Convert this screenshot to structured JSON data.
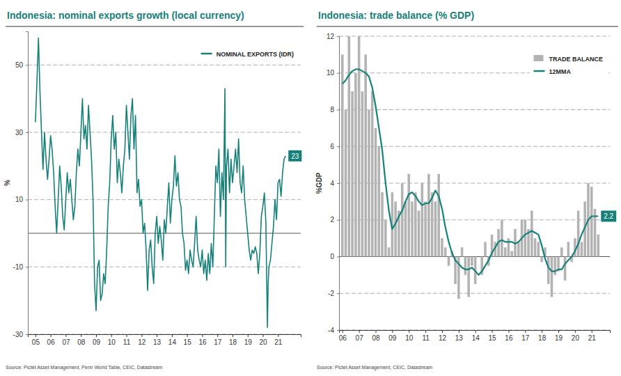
{
  "chart_data": [
    {
      "type": "line",
      "title": "Indonesia: nominal exports growth (local currency)",
      "y_label": "%",
      "source": "Source: Pictet Asset Management, Penn World Table, CEIC, Datastream",
      "x": [
        2005,
        2005.1,
        2005.2,
        2005.3,
        2005.4,
        2005.5,
        2005.6,
        2005.7,
        2005.8,
        2005.9,
        2006,
        2006.1,
        2006.2,
        2006.3,
        2006.4,
        2006.5,
        2006.6,
        2006.7,
        2006.8,
        2006.9,
        2007,
        2007.1,
        2007.2,
        2007.3,
        2007.4,
        2007.5,
        2007.6,
        2007.7,
        2007.8,
        2007.9,
        2008,
        2008.1,
        2008.2,
        2008.3,
        2008.4,
        2008.5,
        2008.6,
        2008.7,
        2008.8,
        2008.9,
        2009,
        2009.1,
        2009.2,
        2009.3,
        2009.4,
        2009.5,
        2009.6,
        2009.7,
        2009.8,
        2009.9,
        2010,
        2010.1,
        2010.2,
        2010.3,
        2010.4,
        2010.5,
        2010.6,
        2010.7,
        2010.8,
        2010.9,
        2011,
        2011.1,
        2011.2,
        2011.3,
        2011.4,
        2011.5,
        2011.6,
        2011.7,
        2011.8,
        2011.9,
        2012,
        2012.1,
        2012.2,
        2012.3,
        2012.4,
        2012.5,
        2012.6,
        2012.7,
        2012.8,
        2012.9,
        2013,
        2013.1,
        2013.2,
        2013.3,
        2013.4,
        2013.5,
        2013.6,
        2013.7,
        2013.8,
        2013.9,
        2014,
        2014.1,
        2014.2,
        2014.3,
        2014.4,
        2014.5,
        2014.6,
        2014.7,
        2014.8,
        2014.9,
        2015,
        2015.1,
        2015.2,
        2015.3,
        2015.4,
        2015.5,
        2015.6,
        2015.7,
        2015.8,
        2015.9,
        2016,
        2016.1,
        2016.2,
        2016.3,
        2016.4,
        2016.5,
        2016.6,
        2016.7,
        2016.8,
        2016.9,
        2017,
        2017.1,
        2017.2,
        2017.3,
        2017.4,
        2017.5,
        2017.55,
        2017.6,
        2017.7,
        2017.8,
        2017.9,
        2018,
        2018.1,
        2018.2,
        2018.3,
        2018.4,
        2018.5,
        2018.6,
        2018.7,
        2018.8,
        2018.9,
        2019,
        2019.1,
        2019.2,
        2019.3,
        2019.4,
        2019.5,
        2019.6,
        2019.7,
        2019.8,
        2019.9,
        2020,
        2020.1,
        2020.2,
        2020.3,
        2020.35,
        2020.4,
        2020.5,
        2020.6,
        2020.7,
        2020.8,
        2020.9,
        2021,
        2021.1,
        2021.2,
        2021.3,
        2021.4,
        2021.5
      ],
      "series": [
        {
          "name": "NOMINAL EXPORTS (IDR)",
          "color": "#16807a",
          "values": [
            33,
            45,
            58,
            42,
            30,
            19,
            30,
            22,
            16,
            22,
            29,
            25,
            18,
            8,
            0,
            10,
            20,
            14,
            5,
            1,
            10,
            18,
            12,
            16,
            10,
            4,
            8,
            18,
            25,
            20,
            30,
            40,
            28,
            32,
            25,
            38,
            30,
            22,
            10,
            -15,
            -23,
            -10,
            -8,
            -20,
            -18,
            -12,
            -15,
            -5,
            8,
            15,
            28,
            35,
            25,
            30,
            15,
            22,
            18,
            12,
            20,
            25,
            38,
            30,
            22,
            35,
            40,
            25,
            35,
            12,
            16,
            8,
            10,
            0,
            3,
            -5,
            -17,
            -5,
            -2,
            -10,
            -15,
            0,
            5,
            -3,
            2,
            -2,
            -8,
            4,
            0,
            8,
            15,
            3,
            10,
            14,
            23,
            14,
            18,
            10,
            8,
            0,
            -3,
            -11,
            -8,
            -12,
            -5,
            -8,
            -10,
            -3,
            5,
            -5,
            -8,
            -10,
            -5,
            -12,
            -8,
            -14,
            -6,
            -12,
            -3,
            -10,
            5,
            20,
            15,
            25,
            5,
            18,
            10,
            43,
            -10,
            20,
            25,
            12,
            22,
            15,
            20,
            25,
            18,
            28,
            15,
            12,
            20,
            10,
            5,
            0,
            -5,
            -8,
            -5,
            -6,
            -4,
            -6,
            -12,
            -6,
            5,
            8,
            12,
            3,
            -28,
            -15,
            -10,
            -8,
            -3,
            2,
            10,
            4,
            15,
            16,
            11,
            18,
            22,
            23
          ]
        }
      ],
      "xlim": [
        2004.5,
        2022.5
      ],
      "xticks": [
        {
          "value": 2005,
          "label": "05"
        },
        {
          "value": 2006,
          "label": "06"
        },
        {
          "value": 2007,
          "label": "07"
        },
        {
          "value": 2008,
          "label": "08"
        },
        {
          "value": 2009,
          "label": "09"
        },
        {
          "value": 2010,
          "label": "10"
        },
        {
          "value": 2011,
          "label": "11"
        },
        {
          "value": 2012,
          "label": "12"
        },
        {
          "value": 2013,
          "label": "13"
        },
        {
          "value": 2014,
          "label": "14"
        },
        {
          "value": 2015,
          "label": "15"
        },
        {
          "value": 2016,
          "label": "16"
        },
        {
          "value": 2017,
          "label": "17"
        },
        {
          "value": 2018,
          "label": "18"
        },
        {
          "value": 2019,
          "label": "19"
        },
        {
          "value": 2020,
          "label": "20"
        },
        {
          "value": 2021,
          "label": "21"
        }
      ],
      "ylim": [
        -30,
        60
      ],
      "yticks": [
        -30,
        -10,
        10,
        30,
        50
      ],
      "grid": true,
      "legend": "upper right",
      "annotations": [
        {
          "text": "23",
          "x": 2021.5,
          "y": 23
        }
      ]
    },
    {
      "type": "bar",
      "title": "Indonesia: trade balance (% GDP)",
      "y_label": "%GDP",
      "source": "Source: Pictet Asset Management, CEIC, Datastream",
      "x": [
        2006,
        2006.2,
        2006.4,
        2006.6,
        2006.8,
        2007,
        2007.2,
        2007.4,
        2007.6,
        2007.8,
        2008,
        2008.2,
        2008.4,
        2008.6,
        2008.8,
        2009,
        2009.2,
        2009.4,
        2009.6,
        2009.8,
        2010,
        2010.2,
        2010.4,
        2010.6,
        2010.8,
        2011,
        2011.2,
        2011.4,
        2011.6,
        2011.8,
        2012,
        2012.2,
        2012.4,
        2012.6,
        2012.8,
        2013,
        2013.2,
        2013.4,
        2013.6,
        2013.8,
        2014,
        2014.2,
        2014.4,
        2014.6,
        2014.8,
        2015,
        2015.2,
        2015.4,
        2015.6,
        2015.8,
        2016,
        2016.2,
        2016.4,
        2016.6,
        2016.8,
        2017,
        2017.2,
        2017.4,
        2017.6,
        2017.8,
        2018,
        2018.2,
        2018.4,
        2018.6,
        2018.8,
        2019,
        2019.2,
        2019.4,
        2019.6,
        2019.8,
        2020,
        2020.2,
        2020.4,
        2020.6,
        2020.8,
        2021,
        2021.2,
        2021.4
      ],
      "series": [
        {
          "name": "TRADE BALANCE",
          "type": "bar",
          "color": "#b3b3b3",
          "values": [
            11,
            8,
            12,
            9,
            10,
            12,
            9,
            11,
            8,
            9,
            7,
            6,
            3.5,
            2,
            0.5,
            3.5,
            3,
            2.5,
            4,
            3,
            4.5,
            3,
            3.5,
            2.5,
            4,
            3,
            4.5,
            3.5,
            3,
            4.5,
            1,
            0.5,
            -0.5,
            0.3,
            -1.5,
            -2.3,
            0.5,
            -1,
            -2.2,
            -0.5,
            -1.5,
            0,
            -1,
            0.8,
            -0.5,
            1.2,
            0.8,
            1.5,
            2,
            0.5,
            1,
            0.3,
            1.5,
            0.8,
            2,
            2,
            1.5,
            2.5,
            1,
            0.8,
            -0.3,
            0.5,
            -1.5,
            -2.2,
            -1,
            -0.8,
            0.5,
            -1.3,
            0.8,
            -0.3,
            1,
            2.5,
            0.8,
            3,
            4,
            3.8,
            2.6,
            1.2
          ]
        },
        {
          "name": "12MMA",
          "type": "line",
          "color": "#16807a",
          "values": [
            9.4,
            9.6,
            9.9,
            10.1,
            10.2,
            10.2,
            10.1,
            10.0,
            9.8,
            9.2,
            8.2,
            7.0,
            5.8,
            4.0,
            2.5,
            1.5,
            1.8,
            2.2,
            2.5,
            3.0,
            3.4,
            3.5,
            3.3,
            3.0,
            2.8,
            2.9,
            2.9,
            3.2,
            3.6,
            3.3,
            2.6,
            1.6,
            0.8,
            0.2,
            -0.2,
            -0.4,
            -0.6,
            -0.7,
            -0.7,
            -0.6,
            -0.8,
            -1.0,
            -0.8,
            -0.5,
            -0.2,
            0.2,
            0.5,
            0.8,
            0.9,
            0.8,
            0.8,
            0.8,
            0.7,
            0.8,
            1.0,
            1.2,
            1.3,
            1.4,
            1.3,
            1.2,
            0.6,
            -0.1,
            -0.6,
            -0.8,
            -0.8,
            -0.7,
            -0.7,
            -0.4,
            -0.2,
            0.0,
            0.3,
            0.7,
            1.2,
            1.6,
            2.0,
            2.2,
            2.2,
            2.2
          ]
        }
      ],
      "xlim": [
        2005.8,
        2022.1
      ],
      "xticks": [
        {
          "value": 2006,
          "label": "06"
        },
        {
          "value": 2007,
          "label": "07"
        },
        {
          "value": 2008,
          "label": "08"
        },
        {
          "value": 2009,
          "label": "09"
        },
        {
          "value": 2010,
          "label": "10"
        },
        {
          "value": 2011,
          "label": "11"
        },
        {
          "value": 2012,
          "label": "12"
        },
        {
          "value": 2013,
          "label": "13"
        },
        {
          "value": 2014,
          "label": "14"
        },
        {
          "value": 2015,
          "label": "15"
        },
        {
          "value": 2016,
          "label": "16"
        },
        {
          "value": 2017,
          "label": "17"
        },
        {
          "value": 2018,
          "label": "18"
        },
        {
          "value": 2019,
          "label": "19"
        },
        {
          "value": 2020,
          "label": "20"
        },
        {
          "value": 2021,
          "label": "21"
        }
      ],
      "ylim": [
        -4,
        12
      ],
      "yticks": [
        -4,
        -2,
        0,
        2,
        4,
        6,
        8,
        10,
        12
      ],
      "grid": true,
      "legend": "upper right",
      "annotations": [
        {
          "text": "2.2",
          "x": 2021.4,
          "y": 2.2
        }
      ]
    }
  ]
}
